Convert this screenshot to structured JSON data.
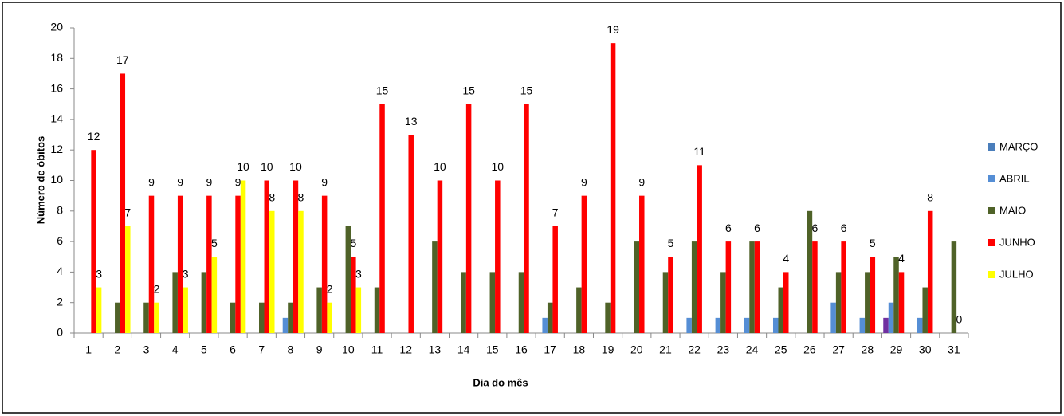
{
  "chart_data": {
    "type": "bar",
    "y_label": "Número de óbitos",
    "x_label": "Dia do mês",
    "categories": [
      "1",
      "2",
      "3",
      "4",
      "5",
      "6",
      "7",
      "8",
      "9",
      "10",
      "11",
      "12",
      "13",
      "14",
      "15",
      "16",
      "17",
      "18",
      "19",
      "20",
      "21",
      "22",
      "23",
      "24",
      "25",
      "26",
      "27",
      "28",
      "29",
      "30",
      "31"
    ],
    "ylim": [
      0,
      20
    ],
    "yticks": [
      0,
      2,
      4,
      6,
      8,
      10,
      12,
      14,
      16,
      18,
      20
    ],
    "legend": "right",
    "series": [
      {
        "name": "MARÇO",
        "color": "#4a7ebb",
        "point_colors": {
          "28": "#7030a0"
        },
        "values": [
          null,
          null,
          null,
          null,
          null,
          null,
          null,
          null,
          null,
          null,
          null,
          null,
          null,
          null,
          null,
          null,
          null,
          null,
          null,
          null,
          null,
          null,
          null,
          null,
          null,
          null,
          null,
          null,
          1,
          null,
          null
        ]
      },
      {
        "name": "ABRIL",
        "color": "#558ed5",
        "values": [
          null,
          null,
          null,
          null,
          null,
          null,
          null,
          1,
          null,
          null,
          null,
          null,
          null,
          null,
          null,
          null,
          1,
          null,
          null,
          null,
          null,
          1,
          1,
          1,
          1,
          null,
          2,
          1,
          2,
          1,
          null
        ]
      },
      {
        "name": "MAIO",
        "color": "#4f6228",
        "values": [
          null,
          2,
          2,
          4,
          4,
          2,
          2,
          2,
          3,
          7,
          3,
          null,
          6,
          4,
          4,
          4,
          2,
          3,
          2,
          6,
          4,
          6,
          4,
          6,
          3,
          8,
          4,
          4,
          5,
          3,
          6
        ]
      },
      {
        "name": "JUNHO",
        "color": "#ff0000",
        "data_labels": true,
        "values": [
          12,
          17,
          9,
          9,
          9,
          9,
          10,
          10,
          9,
          5,
          15,
          13,
          10,
          15,
          10,
          15,
          7,
          9,
          19,
          9,
          5,
          11,
          6,
          6,
          4,
          6,
          6,
          5,
          4,
          8,
          0
        ]
      },
      {
        "name": "JULHO",
        "color": "#ffff00",
        "data_labels": true,
        "values": [
          3,
          7,
          2,
          3,
          5,
          10,
          8,
          8,
          2,
          3,
          null,
          null,
          null,
          null,
          null,
          null,
          null,
          null,
          null,
          null,
          null,
          null,
          null,
          null,
          null,
          null,
          null,
          null,
          null,
          null,
          null
        ]
      }
    ]
  }
}
